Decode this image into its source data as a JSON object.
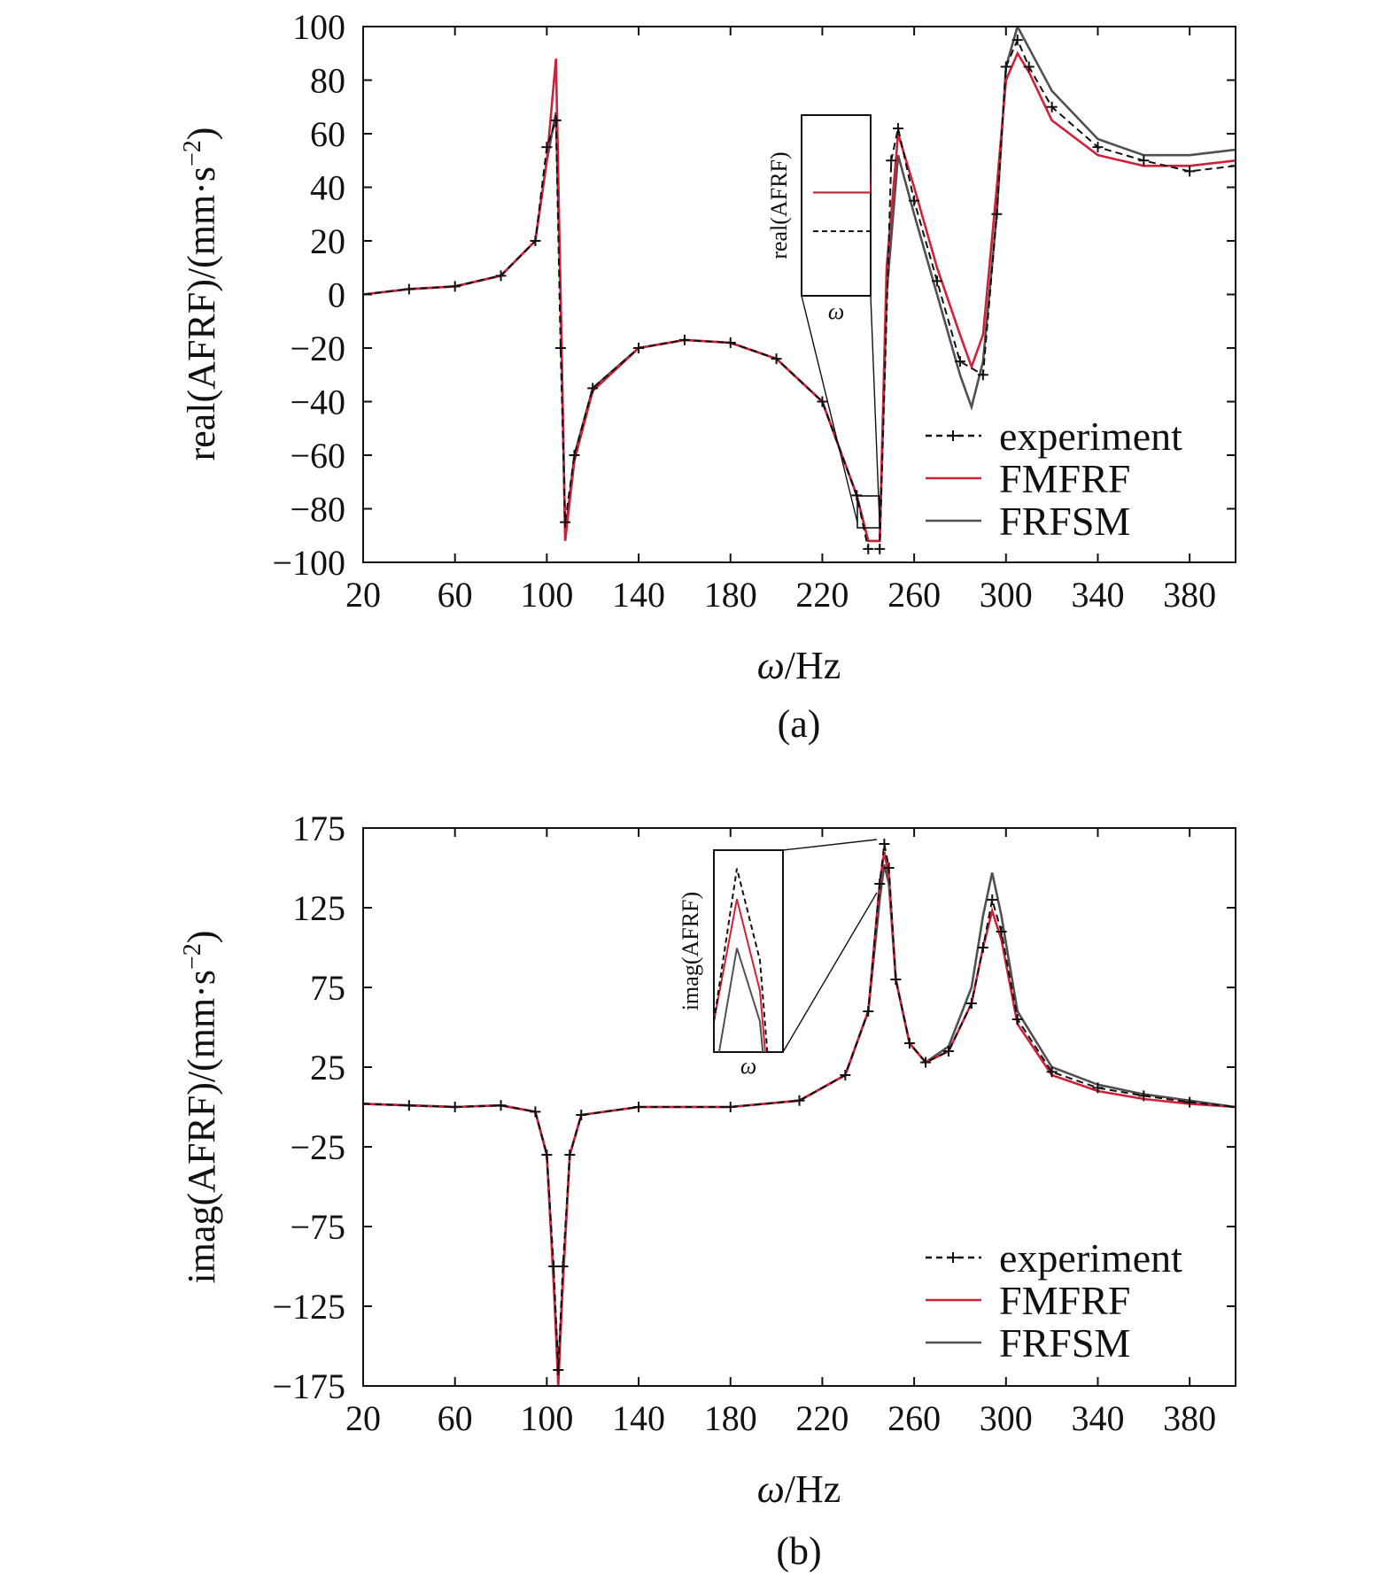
{
  "colors": {
    "experiment": "#111111",
    "fmfrf": "#d0203a",
    "frfsm": "#505050",
    "fmfrf_alt": "#3040b0"
  },
  "chart_data": [
    {
      "type": "line",
      "caption": "(a)",
      "xlabel_sym": "ω",
      "xlabel_rest": "/Hz",
      "ylabel": "real(AFRF)/(mm·s",
      "ylabel_sup": "−2",
      "ylabel_tail": ")",
      "xlim": [
        20,
        400
      ],
      "ylim": [
        -100,
        100
      ],
      "xticks": [
        20,
        60,
        100,
        140,
        180,
        220,
        260,
        300,
        340,
        380
      ],
      "yticks": [
        100,
        80,
        60,
        40,
        20,
        0,
        -20,
        -40,
        -60,
        -80,
        -100
      ],
      "ytick_labels": [
        "100",
        "80",
        "60",
        "40",
        "20",
        "0",
        "−20",
        "−40",
        "−60",
        "−80",
        "−100"
      ],
      "legend": [
        "experiment",
        "FMFRF",
        "FRFSM"
      ],
      "legend_position": "bottom-right",
      "inset": {
        "ylabel": "real(AFRF)",
        "xlabel": "ω",
        "zoom_x": [
          239,
          245
        ],
        "zoom_y": [
          -100,
          -86
        ]
      },
      "series": [
        {
          "name": "experiment",
          "style": "dashed-plus",
          "points": [
            [
              20,
              0
            ],
            [
              40,
              2
            ],
            [
              60,
              3
            ],
            [
              80,
              7
            ],
            [
              95,
              20
            ],
            [
              100,
              55
            ],
            [
              104,
              65
            ],
            [
              106,
              -20
            ],
            [
              108,
              -85
            ],
            [
              112,
              -60
            ],
            [
              120,
              -35
            ],
            [
              140,
              -20
            ],
            [
              160,
              -17
            ],
            [
              180,
              -18
            ],
            [
              200,
              -24
            ],
            [
              220,
              -40
            ],
            [
              235,
              -75
            ],
            [
              240,
              -95
            ],
            [
              245,
              -95
            ],
            [
              250,
              50
            ],
            [
              253,
              62
            ],
            [
              260,
              35
            ],
            [
              270,
              5
            ],
            [
              280,
              -25
            ],
            [
              290,
              -30
            ],
            [
              296,
              30
            ],
            [
              300,
              85
            ],
            [
              305,
              95
            ],
            [
              310,
              85
            ],
            [
              320,
              70
            ],
            [
              340,
              55
            ],
            [
              360,
              50
            ],
            [
              380,
              46
            ],
            [
              400,
              48
            ]
          ]
        },
        {
          "name": "FMFRF",
          "style": "solid",
          "points": [
            [
              20,
              0
            ],
            [
              40,
              2
            ],
            [
              60,
              3
            ],
            [
              80,
              7
            ],
            [
              95,
              20
            ],
            [
              100,
              50
            ],
            [
              104,
              88
            ],
            [
              106,
              0
            ],
            [
              108,
              -92
            ],
            [
              112,
              -62
            ],
            [
              120,
              -36
            ],
            [
              140,
              -20
            ],
            [
              160,
              -17
            ],
            [
              180,
              -18
            ],
            [
              200,
              -24
            ],
            [
              220,
              -40
            ],
            [
              235,
              -75
            ],
            [
              240,
              -92
            ],
            [
              245,
              -92
            ],
            [
              248,
              10
            ],
            [
              253,
              60
            ],
            [
              260,
              40
            ],
            [
              270,
              10
            ],
            [
              280,
              -15
            ],
            [
              285,
              -27
            ],
            [
              290,
              -15
            ],
            [
              296,
              40
            ],
            [
              300,
              80
            ],
            [
              305,
              90
            ],
            [
              310,
              83
            ],
            [
              320,
              65
            ],
            [
              340,
              52
            ],
            [
              360,
              48
            ],
            [
              380,
              48
            ],
            [
              400,
              50
            ]
          ]
        },
        {
          "name": "FRFSM",
          "style": "solid",
          "points": [
            [
              20,
              0
            ],
            [
              40,
              2
            ],
            [
              60,
              3
            ],
            [
              80,
              7
            ],
            [
              95,
              20
            ],
            [
              100,
              50
            ],
            [
              104,
              68
            ],
            [
              106,
              0
            ],
            [
              108,
              -90
            ],
            [
              112,
              -60
            ],
            [
              120,
              -35
            ],
            [
              140,
              -20
            ],
            [
              160,
              -17
            ],
            [
              180,
              -18
            ],
            [
              200,
              -24
            ],
            [
              220,
              -40
            ],
            [
              235,
              -75
            ],
            [
              240,
              -92
            ],
            [
              245,
              -92
            ],
            [
              248,
              0
            ],
            [
              253,
              52
            ],
            [
              260,
              30
            ],
            [
              270,
              0
            ],
            [
              280,
              -30
            ],
            [
              285,
              -42
            ],
            [
              290,
              -25
            ],
            [
              296,
              30
            ],
            [
              300,
              85
            ],
            [
              305,
              100
            ],
            [
              310,
              92
            ],
            [
              320,
              76
            ],
            [
              340,
              58
            ],
            [
              360,
              52
            ],
            [
              380,
              52
            ],
            [
              400,
              54
            ]
          ]
        }
      ]
    },
    {
      "type": "line",
      "caption": "(b)",
      "xlabel_sym": "ω",
      "xlabel_rest": "/Hz",
      "ylabel": "imag(AFRF)/(mm·s",
      "ylabel_sup": "−2",
      "ylabel_tail": ")",
      "xlim": [
        20,
        400
      ],
      "ylim": [
        -175,
        175
      ],
      "xticks": [
        20,
        60,
        100,
        140,
        180,
        220,
        260,
        300,
        340,
        380
      ],
      "yticks": [
        175,
        125,
        75,
        25,
        -25,
        -75,
        -125,
        -175
      ],
      "ytick_labels": [
        "175",
        "125",
        "75",
        "25",
        "−25",
        "−75",
        "−125",
        "−175"
      ],
      "legend": [
        "experiment",
        "FMFRF",
        "FRFSM"
      ],
      "legend_position": "bottom-right",
      "inset": {
        "ylabel": "imag(AFRF)",
        "xlabel": "ω",
        "zoom_x": [
          245,
          251
        ],
        "zoom_y": [
          135,
          168
        ]
      },
      "series": [
        {
          "name": "experiment",
          "style": "dashed-plus",
          "points": [
            [
              20,
              2
            ],
            [
              40,
              1
            ],
            [
              60,
              0
            ],
            [
              80,
              1
            ],
            [
              95,
              -3
            ],
            [
              100,
              -30
            ],
            [
              103,
              -100
            ],
            [
              105,
              -165
            ],
            [
              107,
              -100
            ],
            [
              110,
              -30
            ],
            [
              115,
              -5
            ],
            [
              140,
              0
            ],
            [
              180,
              0
            ],
            [
              210,
              4
            ],
            [
              230,
              20
            ],
            [
              240,
              60
            ],
            [
              245,
              140
            ],
            [
              247,
              165
            ],
            [
              249,
              150
            ],
            [
              252,
              80
            ],
            [
              258,
              40
            ],
            [
              265,
              28
            ],
            [
              275,
              35
            ],
            [
              285,
              65
            ],
            [
              290,
              100
            ],
            [
              294,
              130
            ],
            [
              298,
              110
            ],
            [
              305,
              55
            ],
            [
              320,
              22
            ],
            [
              340,
              12
            ],
            [
              360,
              7
            ],
            [
              380,
              3
            ],
            [
              400,
              0
            ]
          ]
        },
        {
          "name": "FMFRF",
          "style": "solid",
          "points": [
            [
              20,
              2
            ],
            [
              40,
              1
            ],
            [
              60,
              0
            ],
            [
              80,
              1
            ],
            [
              95,
              -3
            ],
            [
              100,
              -30
            ],
            [
              103,
              -110
            ],
            [
              105,
              -175
            ],
            [
              107,
              -110
            ],
            [
              110,
              -30
            ],
            [
              115,
              -5
            ],
            [
              140,
              0
            ],
            [
              180,
              0
            ],
            [
              210,
              4
            ],
            [
              230,
              20
            ],
            [
              240,
              60
            ],
            [
              245,
              140
            ],
            [
              247,
              160
            ],
            [
              249,
              145
            ],
            [
              252,
              80
            ],
            [
              258,
              40
            ],
            [
              265,
              28
            ],
            [
              275,
              35
            ],
            [
              285,
              65
            ],
            [
              290,
              100
            ],
            [
              294,
              123
            ],
            [
              298,
              105
            ],
            [
              305,
              52
            ],
            [
              320,
              20
            ],
            [
              340,
              10
            ],
            [
              360,
              5
            ],
            [
              380,
              2
            ],
            [
              400,
              0
            ]
          ]
        },
        {
          "name": "FRFSM",
          "style": "solid",
          "points": [
            [
              20,
              2
            ],
            [
              40,
              1
            ],
            [
              60,
              0
            ],
            [
              80,
              1
            ],
            [
              95,
              -3
            ],
            [
              100,
              -30
            ],
            [
              103,
              -110
            ],
            [
              105,
              -165
            ],
            [
              107,
              -110
            ],
            [
              110,
              -30
            ],
            [
              115,
              -5
            ],
            [
              140,
              0
            ],
            [
              180,
              0
            ],
            [
              210,
              4
            ],
            [
              230,
              20
            ],
            [
              240,
              60
            ],
            [
              245,
              130
            ],
            [
              247,
              152
            ],
            [
              249,
              140
            ],
            [
              252,
              80
            ],
            [
              258,
              40
            ],
            [
              265,
              28
            ],
            [
              275,
              38
            ],
            [
              285,
              75
            ],
            [
              290,
              120
            ],
            [
              294,
              147
            ],
            [
              298,
              120
            ],
            [
              305,
              60
            ],
            [
              320,
              25
            ],
            [
              340,
              14
            ],
            [
              360,
              8
            ],
            [
              380,
              4
            ],
            [
              400,
              0
            ]
          ]
        }
      ]
    }
  ]
}
